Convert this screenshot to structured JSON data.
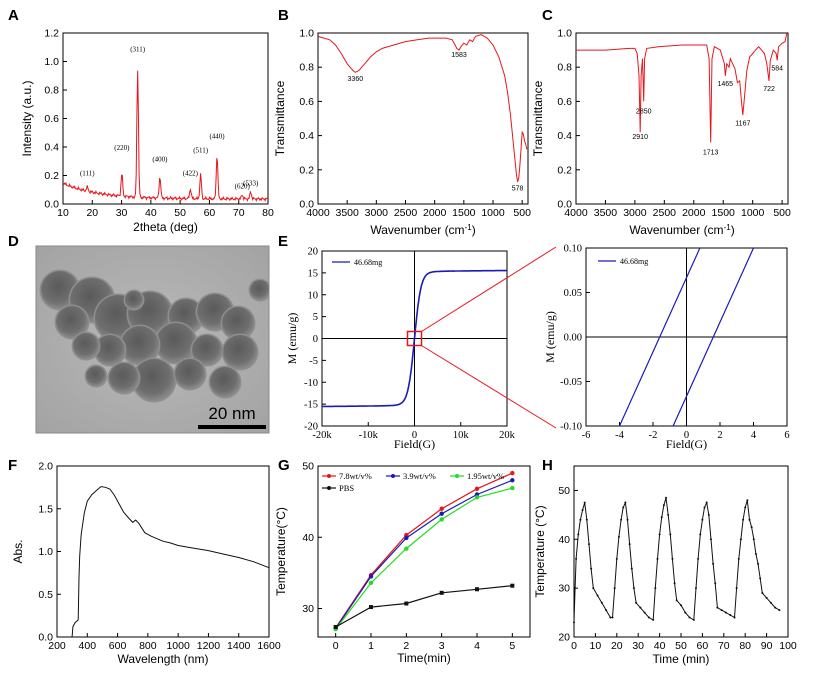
{
  "panels": {
    "a": "A",
    "b": "B",
    "c": "C",
    "d": "D",
    "e": "E",
    "f": "F",
    "g": "G",
    "h": "H"
  },
  "colors": {
    "red": "#e8161c",
    "blue": "#1b1bb5",
    "green": "#22dd22",
    "black": "#111111"
  },
  "chart_data": [
    {
      "id": "A",
      "type": "line",
      "title": "",
      "xlabel": "2theta (deg)",
      "ylabel": "Intensity (a.u.)",
      "xlim": [
        10,
        80
      ],
      "ylim": [
        0,
        1.2
      ],
      "xticks": [
        "10",
        "20",
        "30",
        "40",
        "50",
        "60",
        "70",
        "80"
      ],
      "yticks": [
        "0.0",
        "0.2",
        "0.4",
        "0.6",
        "0.8",
        "1.0",
        "1.2"
      ],
      "peaks": [
        {
          "x": 18.3,
          "h": 0.03,
          "label": "(111)",
          "ly": 0.2
        },
        {
          "x": 30.1,
          "h": 0.16,
          "label": "(220)",
          "ly": 0.38
        },
        {
          "x": 35.5,
          "h": 0.9,
          "label": "(311)",
          "ly": 1.07
        },
        {
          "x": 43.1,
          "h": 0.15,
          "label": "(400)",
          "ly": 0.3
        },
        {
          "x": 53.5,
          "h": 0.07,
          "label": "(422)",
          "ly": 0.2
        },
        {
          "x": 57.0,
          "h": 0.17,
          "label": "(511)",
          "ly": 0.36
        },
        {
          "x": 62.6,
          "h": 0.31,
          "label": "(440)",
          "ly": 0.46
        },
        {
          "x": 71.2,
          "h": 0.03,
          "label": "(620)",
          "ly": 0.11
        },
        {
          "x": 74.1,
          "h": 0.05,
          "label": "(533)",
          "ly": 0.13
        }
      ]
    },
    {
      "id": "B",
      "type": "line",
      "xlabel": "Wavenumber (cm",
      "xlabel_sup": "-1",
      "xlabel_end": ")",
      "ylabel": "Transmittance",
      "xlim": [
        4000,
        400
      ],
      "ylim": [
        0.0,
        1.0
      ],
      "xticks": [
        "4000",
        "3500",
        "3000",
        "2500",
        "2000",
        "1500",
        "1000",
        "500"
      ],
      "yticks": [
        "0.0",
        "0.2",
        "0.4",
        "0.6",
        "0.8",
        "1.0"
      ],
      "points": [
        [
          4000,
          0.98
        ],
        [
          3900,
          0.97
        ],
        [
          3800,
          0.96
        ],
        [
          3700,
          0.93
        ],
        [
          3600,
          0.88
        ],
        [
          3500,
          0.82
        ],
        [
          3400,
          0.78
        ],
        [
          3360,
          0.77
        ],
        [
          3300,
          0.78
        ],
        [
          3200,
          0.82
        ],
        [
          3100,
          0.86
        ],
        [
          3000,
          0.89
        ],
        [
          2900,
          0.91
        ],
        [
          2700,
          0.93
        ],
        [
          2500,
          0.95
        ],
        [
          2300,
          0.96
        ],
        [
          2100,
          0.97
        ],
        [
          2000,
          0.97
        ],
        [
          1800,
          0.97
        ],
        [
          1700,
          0.96
        ],
        [
          1650,
          0.93
        ],
        [
          1620,
          0.91
        ],
        [
          1583,
          0.9
        ],
        [
          1550,
          0.92
        ],
        [
          1500,
          0.94
        ],
        [
          1450,
          0.93
        ],
        [
          1400,
          0.96
        ],
        [
          1350,
          0.95
        ],
        [
          1300,
          0.98
        ],
        [
          1200,
          0.99
        ],
        [
          1100,
          0.97
        ],
        [
          1000,
          0.93
        ],
        [
          900,
          0.86
        ],
        [
          800,
          0.75
        ],
        [
          750,
          0.65
        ],
        [
          700,
          0.52
        ],
        [
          650,
          0.35
        ],
        [
          600,
          0.18
        ],
        [
          578,
          0.13
        ],
        [
          560,
          0.15
        ],
        [
          540,
          0.22
        ],
        [
          520,
          0.32
        ],
        [
          500,
          0.42
        ],
        [
          480,
          0.41
        ],
        [
          460,
          0.37
        ],
        [
          440,
          0.35
        ],
        [
          420,
          0.32
        ]
      ],
      "labels": [
        {
          "x": 3360,
          "y": 0.72,
          "text": "3360"
        },
        {
          "x": 1583,
          "y": 0.86,
          "text": "1583"
        },
        {
          "x": 578,
          "y": 0.08,
          "text": "578"
        }
      ]
    },
    {
      "id": "C",
      "type": "line",
      "xlabel": "Wavenumber (cm",
      "xlabel_sup": "-1",
      "xlabel_end": ")",
      "ylabel": "Transmittance",
      "xlim": [
        4000,
        400
      ],
      "ylim": [
        0.0,
        1.0
      ],
      "xticks": [
        "4000",
        "3500",
        "3000",
        "2500",
        "2000",
        "1500",
        "1000",
        "500"
      ],
      "yticks": [
        "0.0",
        "0.2",
        "0.4",
        "0.6",
        "0.8",
        "1.0"
      ],
      "points": [
        [
          4000,
          0.9
        ],
        [
          3500,
          0.9
        ],
        [
          3100,
          0.91
        ],
        [
          3000,
          0.91
        ],
        [
          2960,
          0.88
        ],
        [
          2930,
          0.75
        ],
        [
          2910,
          0.42
        ],
        [
          2895,
          0.75
        ],
        [
          2870,
          0.85
        ],
        [
          2850,
          0.6
        ],
        [
          2835,
          0.85
        ],
        [
          2800,
          0.91
        ],
        [
          2600,
          0.92
        ],
        [
          2200,
          0.93
        ],
        [
          1900,
          0.93
        ],
        [
          1780,
          0.93
        ],
        [
          1740,
          0.85
        ],
        [
          1713,
          0.36
        ],
        [
          1690,
          0.85
        ],
        [
          1650,
          0.92
        ],
        [
          1550,
          0.9
        ],
        [
          1480,
          0.82
        ],
        [
          1465,
          0.75
        ],
        [
          1440,
          0.82
        ],
        [
          1400,
          0.8
        ],
        [
          1380,
          0.85
        ],
        [
          1300,
          0.79
        ],
        [
          1260,
          0.71
        ],
        [
          1220,
          0.72
        ],
        [
          1190,
          0.6
        ],
        [
          1167,
          0.52
        ],
        [
          1140,
          0.62
        ],
        [
          1100,
          0.78
        ],
        [
          1050,
          0.86
        ],
        [
          1000,
          0.88
        ],
        [
          950,
          0.9
        ],
        [
          900,
          0.92
        ],
        [
          850,
          0.9
        ],
        [
          800,
          0.88
        ],
        [
          760,
          0.82
        ],
        [
          722,
          0.72
        ],
        [
          700,
          0.84
        ],
        [
          650,
          0.9
        ],
        [
          600,
          0.88
        ],
        [
          584,
          0.84
        ],
        [
          560,
          0.92
        ],
        [
          500,
          0.94
        ],
        [
          450,
          0.95
        ],
        [
          420,
          1.0
        ]
      ],
      "labels": [
        {
          "x": 2910,
          "y": 0.38,
          "text": "2910"
        },
        {
          "x": 2850,
          "y": 0.53,
          "text": "2850"
        },
        {
          "x": 1713,
          "y": 0.29,
          "text": "1713"
        },
        {
          "x": 1465,
          "y": 0.69,
          "text": "1465"
        },
        {
          "x": 1167,
          "y": 0.46,
          "text": "1167"
        },
        {
          "x": 722,
          "y": 0.66,
          "text": "722"
        },
        {
          "x": 584,
          "y": 0.78,
          "text": "584"
        }
      ]
    },
    {
      "id": "E",
      "type": "line",
      "xlabel": "Field(G)",
      "ylabel": "M (emu/g)",
      "legend": "46.68mg",
      "xlim": [
        -20000,
        20000
      ],
      "ylim": [
        -20,
        20
      ],
      "xticks": [
        "-20k",
        "-10k",
        "0",
        "10k",
        "20k"
      ],
      "yticks": [
        "-20",
        "-15",
        "-10",
        "-5",
        "0",
        "5",
        "10",
        "15",
        "20"
      ],
      "saturation": 15.5
    },
    {
      "id": "E-inset",
      "type": "line",
      "xlabel": "Field(G)",
      "ylabel": "M (emu/g)",
      "legend": "46.68mg",
      "xlim": [
        -6,
        6
      ],
      "ylim": [
        -0.1,
        0.1
      ],
      "xticks": [
        "-6",
        "-4",
        "-2",
        "0",
        "2",
        "4",
        "6"
      ],
      "yticks": [
        "-0.10",
        "-0.05",
        "0.00",
        "0.05",
        "0.10"
      ],
      "lines": [
        [
          [
            -4.0,
            -0.1
          ],
          [
            0.8,
            0.1
          ]
        ],
        [
          [
            -0.8,
            -0.1
          ],
          [
            4.0,
            0.1
          ]
        ]
      ]
    },
    {
      "id": "F",
      "type": "line",
      "xlabel": "Wavelength (nm)",
      "ylabel": "Abs.",
      "xlim": [
        200,
        1600
      ],
      "ylim": [
        0,
        2.0
      ],
      "xticks": [
        "200",
        "400",
        "600",
        "800",
        "1000",
        "1200",
        "1400",
        "1600"
      ],
      "yticks": [
        "0.0",
        "0.5",
        "1.0",
        "1.5",
        "2.0"
      ],
      "points": [
        [
          300,
          0.0
        ],
        [
          305,
          0.12
        ],
        [
          320,
          0.17
        ],
        [
          340,
          0.2
        ],
        [
          345,
          0.7
        ],
        [
          350,
          0.95
        ],
        [
          360,
          1.2
        ],
        [
          380,
          1.45
        ],
        [
          400,
          1.58
        ],
        [
          430,
          1.67
        ],
        [
          460,
          1.72
        ],
        [
          490,
          1.75
        ],
        [
          520,
          1.75
        ],
        [
          550,
          1.74
        ],
        [
          580,
          1.65
        ],
        [
          610,
          1.55
        ],
        [
          640,
          1.47
        ],
        [
          670,
          1.4
        ],
        [
          700,
          1.33
        ],
        [
          720,
          1.36
        ],
        [
          740,
          1.33
        ],
        [
          780,
          1.23
        ],
        [
          820,
          1.18
        ],
        [
          860,
          1.15
        ],
        [
          900,
          1.12
        ],
        [
          950,
          1.1
        ],
        [
          1000,
          1.07
        ],
        [
          1100,
          1.04
        ],
        [
          1200,
          1.01
        ],
        [
          1300,
          0.97
        ],
        [
          1400,
          0.93
        ],
        [
          1500,
          0.88
        ],
        [
          1600,
          0.81
        ]
      ]
    },
    {
      "id": "G",
      "type": "line",
      "xlabel": "Time(min)",
      "ylabel": "Temperature(°C)",
      "xlim": [
        -0.5,
        5.5
      ],
      "ylim": [
        26,
        50
      ],
      "xticks": [
        "0",
        "1",
        "2",
        "3",
        "4",
        "5"
      ],
      "yticks": [
        "30",
        "40",
        "50"
      ],
      "x": [
        0,
        1,
        2,
        3,
        4,
        5
      ],
      "series": [
        {
          "name": "7.8wt/v%",
          "color": "#e8161c",
          "values": [
            27.3,
            34.7,
            40.3,
            44.0,
            46.8,
            49.0
          ]
        },
        {
          "name": "3.9wt/v%",
          "color": "#1b1bb5",
          "values": [
            27.2,
            34.5,
            39.9,
            43.3,
            46.0,
            48.0
          ]
        },
        {
          "name": "1.95wt/v%",
          "color": "#22dd22",
          "values": [
            27.1,
            33.6,
            38.4,
            42.5,
            45.6,
            46.9
          ]
        },
        {
          "name": "PBS",
          "color": "#111111",
          "values": [
            27.4,
            30.2,
            30.7,
            32.2,
            32.7,
            33.2
          ]
        }
      ]
    },
    {
      "id": "H",
      "type": "line",
      "xlabel": "Time (min)",
      "ylabel": "Temperature (°C)",
      "xlim": [
        0,
        100
      ],
      "ylim": [
        20,
        55
      ],
      "xticks": [
        "0",
        "10",
        "20",
        "30",
        "40",
        "50",
        "60",
        "70",
        "80",
        "90",
        "100"
      ],
      "yticks": [
        "20",
        "30",
        "40",
        "50"
      ],
      "points": [
        [
          0,
          23
        ],
        [
          0.5,
          30
        ],
        [
          1,
          36
        ],
        [
          2,
          41
        ],
        [
          3,
          44
        ],
        [
          4,
          46
        ],
        [
          5,
          47.5
        ],
        [
          6,
          44
        ],
        [
          7,
          39
        ],
        [
          8,
          34
        ],
        [
          9,
          30
        ],
        [
          11,
          28.5
        ],
        [
          13,
          27
        ],
        [
          15,
          25.5
        ],
        [
          17,
          24
        ],
        [
          18,
          24
        ],
        [
          19,
          30
        ],
        [
          20,
          36
        ],
        [
          21,
          40.5
        ],
        [
          22,
          44
        ],
        [
          23,
          46.5
        ],
        [
          24,
          47.5
        ],
        [
          25,
          44
        ],
        [
          26,
          39
        ],
        [
          27,
          34
        ],
        [
          28,
          30
        ],
        [
          29,
          27
        ],
        [
          31,
          26
        ],
        [
          33,
          25
        ],
        [
          35,
          24
        ],
        [
          37,
          23.5
        ],
        [
          38,
          30
        ],
        [
          39,
          36
        ],
        [
          40,
          41
        ],
        [
          41,
          44.5
        ],
        [
          42,
          47
        ],
        [
          43,
          48.5
        ],
        [
          44,
          45
        ],
        [
          45,
          41
        ],
        [
          46,
          36
        ],
        [
          47,
          31
        ],
        [
          48,
          27.5
        ],
        [
          50,
          26.5
        ],
        [
          52,
          25
        ],
        [
          54,
          24
        ],
        [
          56,
          23.5
        ],
        [
          57,
          30
        ],
        [
          58,
          36
        ],
        [
          59,
          41
        ],
        [
          60,
          44
        ],
        [
          61,
          46.5
        ],
        [
          62,
          47.5
        ],
        [
          63,
          45
        ],
        [
          64,
          40
        ],
        [
          65,
          35
        ],
        [
          66,
          31
        ],
        [
          67,
          26
        ],
        [
          69,
          25.5
        ],
        [
          71,
          25
        ],
        [
          73,
          24.5
        ],
        [
          75,
          24
        ],
        [
          76,
          30
        ],
        [
          77,
          36
        ],
        [
          78,
          40
        ],
        [
          79,
          44
        ],
        [
          80,
          46.5
        ],
        [
          81,
          48
        ],
        [
          82,
          44
        ],
        [
          83,
          42.5
        ],
        [
          84,
          40
        ],
        [
          85,
          37
        ],
        [
          86,
          35
        ],
        [
          87,
          32
        ],
        [
          88,
          29
        ],
        [
          90,
          28
        ],
        [
          92,
          27
        ],
        [
          94,
          26
        ],
        [
          96,
          25.5
        ]
      ]
    }
  ],
  "tem": {
    "scale_label": "20 nm"
  }
}
